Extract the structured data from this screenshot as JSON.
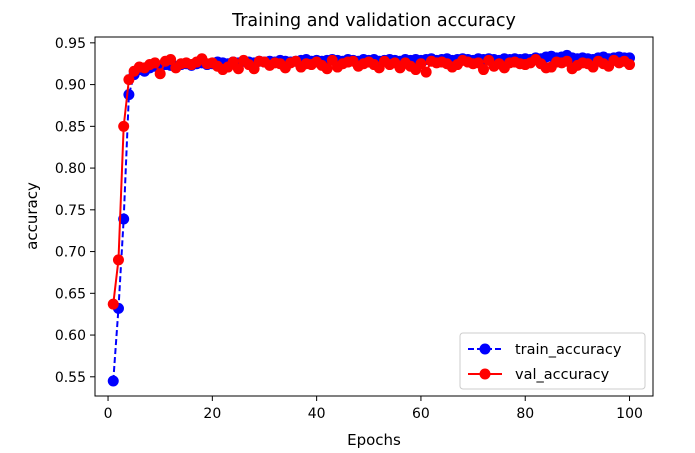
{
  "chart_data": {
    "type": "line",
    "title": "Training and validation accuracy",
    "xlabel": "Epochs",
    "ylabel": "accuracy",
    "xlim": [
      -2.5,
      104.5
    ],
    "ylim": [
      0.527,
      0.957
    ],
    "xticks": [
      0,
      20,
      40,
      60,
      80,
      100
    ],
    "yticks": [
      0.55,
      0.6,
      0.65,
      0.7,
      0.75,
      0.8,
      0.85,
      0.9,
      0.95
    ],
    "xtick_labels": [
      "0",
      "20",
      "40",
      "60",
      "80",
      "100"
    ],
    "ytick_labels": [
      "0.55",
      "0.60",
      "0.65",
      "0.70",
      "0.75",
      "0.80",
      "0.85",
      "0.90",
      "0.95"
    ],
    "grid": false,
    "legend_position": "lower-right",
    "x": [
      1,
      2,
      3,
      4,
      5,
      6,
      7,
      8,
      9,
      10,
      11,
      12,
      13,
      14,
      15,
      16,
      17,
      18,
      19,
      20,
      21,
      22,
      23,
      24,
      25,
      26,
      27,
      28,
      29,
      30,
      31,
      32,
      33,
      34,
      35,
      36,
      37,
      38,
      39,
      40,
      41,
      42,
      43,
      44,
      45,
      46,
      47,
      48,
      49,
      50,
      51,
      52,
      53,
      54,
      55,
      56,
      57,
      58,
      59,
      60,
      61,
      62,
      63,
      64,
      65,
      66,
      67,
      68,
      69,
      70,
      71,
      72,
      73,
      74,
      75,
      76,
      77,
      78,
      79,
      80,
      81,
      82,
      83,
      84,
      85,
      86,
      87,
      88,
      89,
      90,
      91,
      92,
      93,
      94,
      95,
      96,
      97,
      98,
      99,
      100
    ],
    "series": [
      {
        "name": "train_accuracy",
        "color": "#0000ff",
        "line_style": "dashed",
        "marker": "circle",
        "values": [
          0.545,
          0.632,
          0.739,
          0.888,
          0.912,
          0.918,
          0.916,
          0.92,
          0.922,
          0.921,
          0.924,
          0.923,
          0.922,
          0.924,
          0.925,
          0.923,
          0.925,
          0.926,
          0.924,
          0.925,
          0.927,
          0.926,
          0.925,
          0.927,
          0.926,
          0.928,
          0.927,
          0.926,
          0.928,
          0.927,
          0.928,
          0.927,
          0.929,
          0.928,
          0.927,
          0.928,
          0.929,
          0.93,
          0.928,
          0.929,
          0.928,
          0.929,
          0.93,
          0.929,
          0.928,
          0.93,
          0.929,
          0.928,
          0.93,
          0.929,
          0.93,
          0.928,
          0.929,
          0.93,
          0.929,
          0.928,
          0.93,
          0.929,
          0.93,
          0.929,
          0.93,
          0.931,
          0.929,
          0.93,
          0.931,
          0.929,
          0.93,
          0.931,
          0.93,
          0.929,
          0.931,
          0.93,
          0.931,
          0.93,
          0.929,
          0.931,
          0.93,
          0.931,
          0.93,
          0.931,
          0.93,
          0.932,
          0.931,
          0.933,
          0.934,
          0.932,
          0.933,
          0.935,
          0.932,
          0.931,
          0.932,
          0.931,
          0.93,
          0.932,
          0.933,
          0.931,
          0.932,
          0.933,
          0.932,
          0.932
        ]
      },
      {
        "name": "val_accuracy",
        "color": "#ff0000",
        "line_style": "solid",
        "marker": "circle",
        "values": [
          0.637,
          0.69,
          0.85,
          0.906,
          0.916,
          0.921,
          0.92,
          0.924,
          0.926,
          0.913,
          0.928,
          0.93,
          0.92,
          0.925,
          0.926,
          0.924,
          0.927,
          0.931,
          0.925,
          0.926,
          0.922,
          0.918,
          0.921,
          0.927,
          0.919,
          0.929,
          0.924,
          0.919,
          0.928,
          0.927,
          0.923,
          0.926,
          0.925,
          0.92,
          0.926,
          0.928,
          0.921,
          0.925,
          0.924,
          0.927,
          0.923,
          0.919,
          0.929,
          0.921,
          0.925,
          0.927,
          0.928,
          0.922,
          0.925,
          0.927,
          0.924,
          0.92,
          0.928,
          0.924,
          0.926,
          0.92,
          0.926,
          0.922,
          0.918,
          0.925,
          0.915,
          0.928,
          0.926,
          0.927,
          0.925,
          0.921,
          0.924,
          0.929,
          0.927,
          0.925,
          0.926,
          0.918,
          0.929,
          0.922,
          0.925,
          0.92,
          0.926,
          0.927,
          0.925,
          0.924,
          0.926,
          0.93,
          0.925,
          0.92,
          0.921,
          0.927,
          0.926,
          0.928,
          0.919,
          0.923,
          0.926,
          0.925,
          0.921,
          0.928,
          0.925,
          0.922,
          0.929,
          0.926,
          0.928,
          0.924
        ]
      }
    ]
  }
}
